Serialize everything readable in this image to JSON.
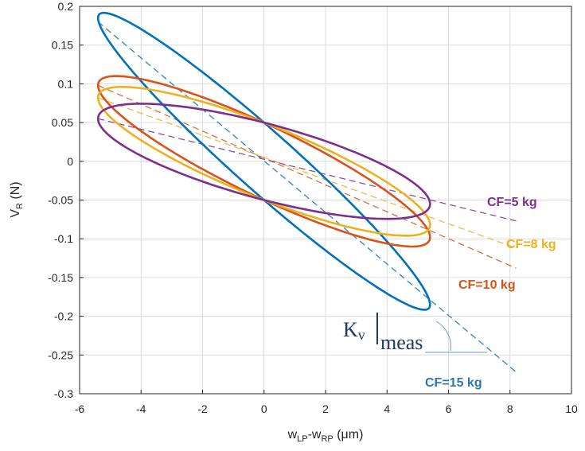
{
  "chart_data": {
    "type": "line",
    "title": "",
    "xlabel": "w_LP-w_RP (μm)",
    "ylabel": "V_R (N)",
    "xlim": [
      -6,
      10
    ],
    "ylim": [
      -0.3,
      0.2
    ],
    "xticks": [
      -6,
      -4,
      -2,
      0,
      2,
      4,
      6,
      8,
      10
    ],
    "yticks": [
      0.2,
      0.15,
      0.1,
      0.05,
      0,
      -0.05,
      -0.1,
      -0.15,
      -0.2,
      -0.25,
      -0.3
    ],
    "xtick_labels": [
      "-6",
      "-4",
      "-2",
      "0",
      "2",
      "4",
      "6",
      "8",
      "10"
    ],
    "ytick_labels": [
      "0.2",
      "0.15",
      "0.1",
      "0.05",
      "0",
      "-0.05",
      "-0.1",
      "-0.15",
      "-0.2",
      "-0.25",
      "-0.3"
    ],
    "xlabel_parts": {
      "w1": "w",
      "s1": "LP",
      "dash": "-w",
      "s2": "RP",
      "unit": " (μm)"
    },
    "ylabel_parts": {
      "v": "V",
      "sub": "R",
      "unit": " (N)"
    },
    "grid": true,
    "series": [
      {
        "label": "CF=15 kg",
        "color": "#0072BD",
        "loop": {
          "x_amplitude": 5.4,
          "y_at_x_max": -0.185,
          "y_at_x_min": 0.185,
          "y_at_x0_upper": 0.05,
          "y_at_x0_lower": -0.05
        },
        "fit_line": {
          "x": [
            -5.4,
            8.2
          ],
          "y": [
            0.18,
            -0.272
          ]
        }
      },
      {
        "label": "CF=10 kg",
        "color": "#D95319",
        "loop": {
          "x_amplitude": 5.4,
          "y_at_x_max": -0.098,
          "y_at_x_min": 0.098,
          "y_at_x0_upper": 0.05,
          "y_at_x0_lower": -0.05
        },
        "fit_line": {
          "x": [
            -5.4,
            8.2
          ],
          "y": [
            0.098,
            -0.138
          ]
        }
      },
      {
        "label": "CF=8 kg",
        "color": "#EDB120",
        "loop": {
          "x_amplitude": 5.4,
          "y_at_x_max": -0.082,
          "y_at_x_min": 0.082,
          "y_at_x0_upper": 0.05,
          "y_at_x0_lower": -0.05
        },
        "fit_line": {
          "x": [
            -5.4,
            8.2
          ],
          "y": [
            0.082,
            -0.112
          ]
        }
      },
      {
        "label": "CF=5 kg",
        "color": "#7E2F8E",
        "loop": {
          "x_amplitude": 5.4,
          "y_at_x_max": -0.055,
          "y_at_x_min": 0.055,
          "y_at_x0_upper": 0.05,
          "y_at_x0_lower": -0.05
        },
        "fit_line": {
          "x": [
            -5.4,
            8.2
          ],
          "y": [
            0.055,
            -0.077
          ]
        }
      }
    ],
    "annotation": {
      "main": "K",
      "v": "v",
      "meas": "meas"
    }
  }
}
